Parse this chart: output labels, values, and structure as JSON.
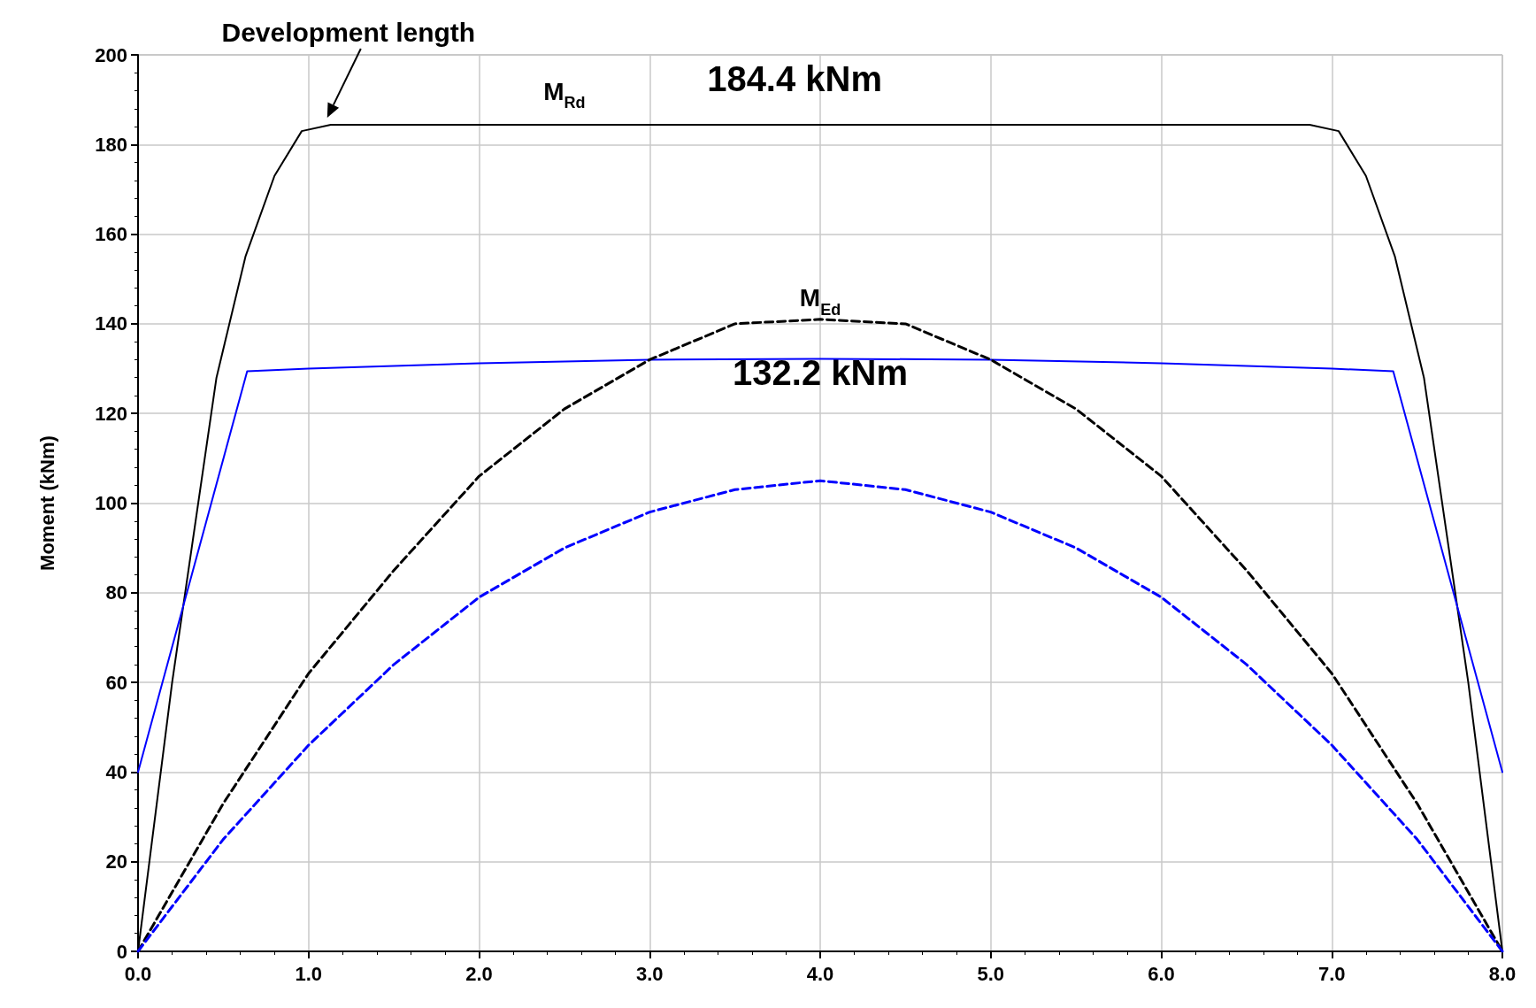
{
  "chart_data": {
    "type": "line",
    "ylabel": "Moment (kNm)",
    "xlim": [
      0,
      8
    ],
    "xticks": [
      {
        "value": 0,
        "label": "0.0"
      },
      {
        "value": 1,
        "label": "1.0"
      },
      {
        "value": 2,
        "label": "2.0"
      },
      {
        "value": 3,
        "label": "3.0"
      },
      {
        "value": 4,
        "label": "4.0"
      },
      {
        "value": 5,
        "label": "5.0"
      },
      {
        "value": 6,
        "label": "6.0"
      },
      {
        "value": 7,
        "label": "7.0"
      },
      {
        "value": 8,
        "label": "8.0"
      }
    ],
    "ylim": [
      0,
      200
    ],
    "yticks": [
      0,
      20,
      40,
      60,
      80,
      100,
      120,
      140,
      160,
      180,
      200
    ],
    "grid": true,
    "marker": "none",
    "series": [
      {
        "color": "#000000",
        "line_style": "solid",
        "x": [
          0,
          0.2,
          0.46,
          0.63,
          0.8,
          0.96,
          1.13,
          6.87,
          7.04,
          7.2,
          7.37,
          7.54,
          7.8,
          8
        ],
        "values": [
          0,
          60,
          128,
          155,
          173,
          183,
          184.4,
          184.4,
          183,
          173,
          155,
          128,
          60,
          0
        ]
      },
      {
        "color": "#0000ff",
        "line_style": "solid",
        "x": [
          0,
          0.64,
          1,
          2,
          3,
          4,
          5,
          6,
          7,
          7.36,
          8
        ],
        "values": [
          40,
          129.4,
          130,
          131.2,
          132,
          132.2,
          132,
          131.2,
          130,
          129.4,
          40
        ]
      },
      {
        "color": "#000000",
        "line_style": "dashed",
        "x": [
          0,
          0.5,
          1,
          1.5,
          2,
          2.5,
          3,
          3.5,
          4,
          4.5,
          5,
          5.5,
          6,
          6.5,
          7,
          7.5,
          8
        ],
        "values": [
          0,
          33,
          62,
          85,
          106,
          121,
          132,
          140,
          141,
          140,
          132,
          121,
          106,
          85,
          62,
          33,
          0
        ]
      },
      {
        "color": "#0000ff",
        "line_style": "dashed",
        "x": [
          0,
          0.5,
          1,
          1.5,
          2,
          2.5,
          3,
          3.5,
          4,
          4.5,
          5,
          5.5,
          6,
          6.5,
          7,
          7.5,
          8
        ],
        "values": [
          0,
          25,
          46,
          64,
          79,
          90,
          98,
          103,
          105,
          103,
          98,
          90,
          79,
          64,
          46,
          25,
          0
        ]
      }
    ],
    "annotations": [
      {
        "text": "Development length",
        "x": 1.13,
        "y": 184.4
      },
      {
        "text": "M$_{Rd}$",
        "x": 2.5,
        "y": 184.4
      },
      {
        "text": "184.4 kNm",
        "x": 3.85,
        "y": 184.4
      },
      {
        "text": "M$_{Ed}$",
        "x": 4,
        "y": 141
      },
      {
        "text": "132.2 kNm",
        "x": 4,
        "y": 132.2
      }
    ]
  }
}
